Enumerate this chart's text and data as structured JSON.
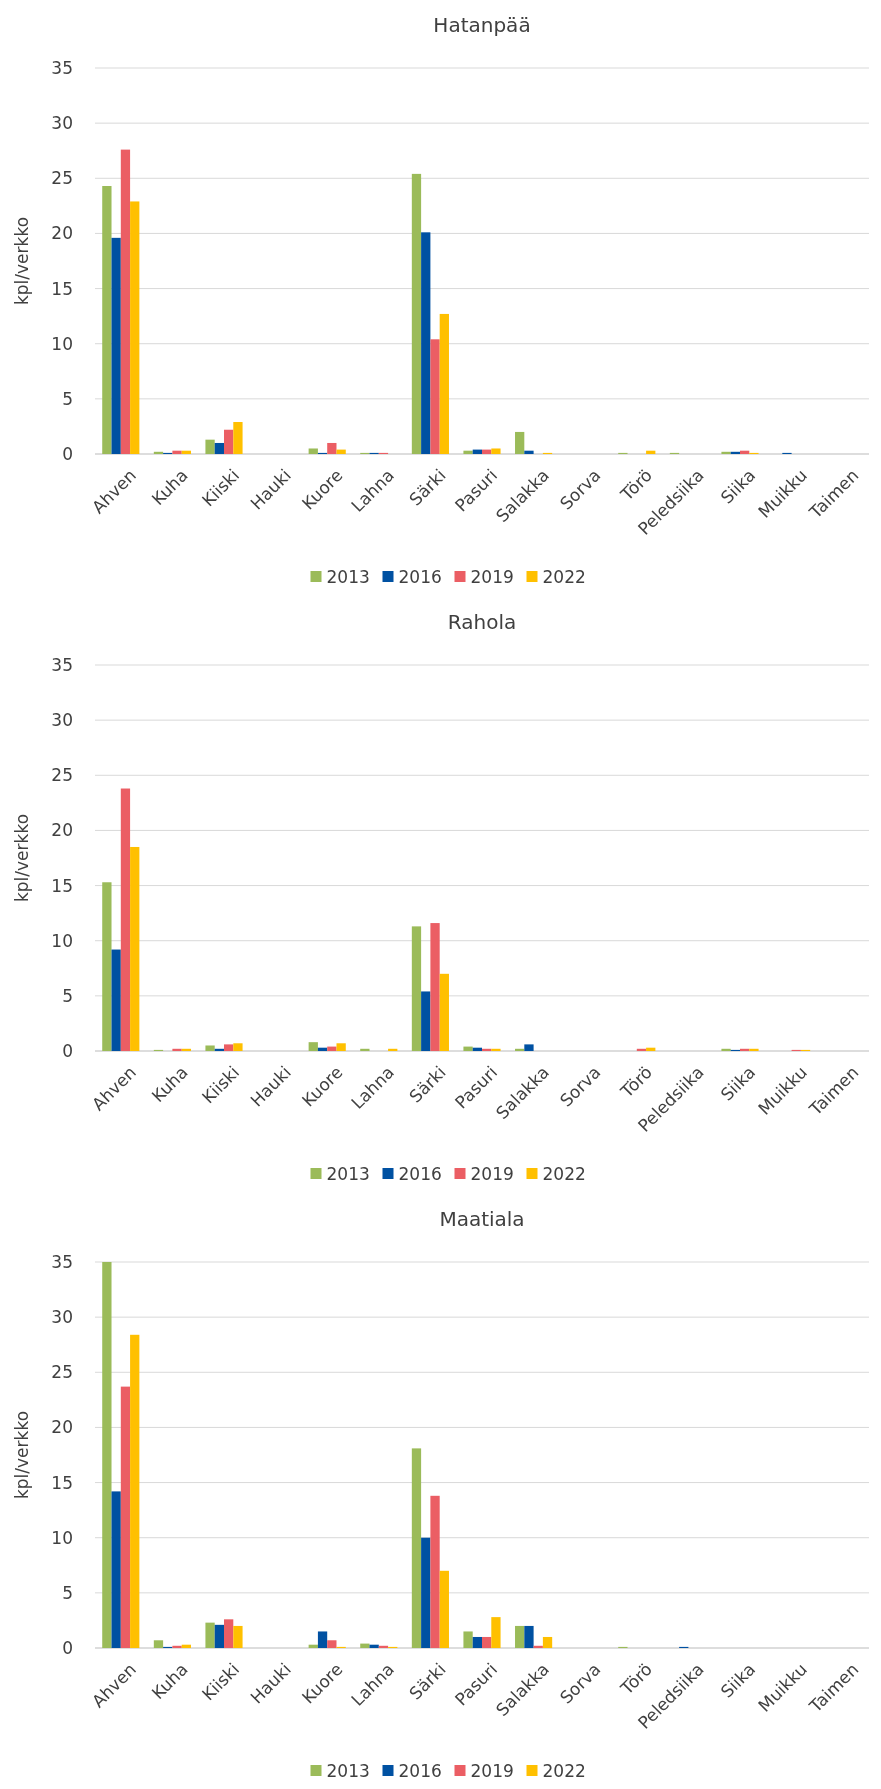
{
  "chart_data": [
    {
      "type": "bar",
      "title": "Hatanpää",
      "ylabel": "kpl/verkko",
      "categories": [
        "Ahven",
        "Kuha",
        "Kiiski",
        "Hauki",
        "Kuore",
        "Lahna",
        "Särki",
        "Pasuri",
        "Salakka",
        "Sorva",
        "Törö",
        "Peledsiika",
        "Siika",
        "Muikku",
        "Taimen"
      ],
      "ylim": [
        0,
        35
      ],
      "yticks": [
        0,
        5,
        10,
        15,
        20,
        25,
        30,
        35
      ],
      "grid": "y",
      "legend": "bottom",
      "series": [
        {
          "name": "2013",
          "color": "#9bbb59",
          "values": [
            24.3,
            0.2,
            1.3,
            0,
            0.5,
            0.1,
            25.4,
            0.3,
            2.0,
            0,
            0.1,
            0.1,
            0.2,
            0,
            0
          ]
        },
        {
          "name": "2016",
          "color": "#0051a2",
          "values": [
            19.6,
            0.1,
            1.0,
            0,
            0.1,
            0.1,
            20.1,
            0.4,
            0.3,
            0,
            0,
            0,
            0.2,
            0.1,
            0
          ]
        },
        {
          "name": "2019",
          "color": "#eb5e64",
          "values": [
            27.6,
            0.3,
            2.2,
            0,
            1.0,
            0.1,
            10.4,
            0.4,
            0,
            0,
            0,
            0,
            0.3,
            0,
            0
          ]
        },
        {
          "name": "2022",
          "color": "#ffc000",
          "values": [
            22.9,
            0.3,
            2.9,
            0,
            0.4,
            0,
            12.7,
            0.5,
            0.1,
            0,
            0.3,
            0,
            0.1,
            0,
            0
          ]
        }
      ]
    },
    {
      "type": "bar",
      "title": "Rahola",
      "ylabel": "kpl/verkko",
      "categories": [
        "Ahven",
        "Kuha",
        "Kiiski",
        "Hauki",
        "Kuore",
        "Lahna",
        "Särki",
        "Pasuri",
        "Salakka",
        "Sorva",
        "Törö",
        "Peledsiika",
        "Siika",
        "Muikku",
        "Taimen"
      ],
      "ylim": [
        0,
        35
      ],
      "yticks": [
        0,
        5,
        10,
        15,
        20,
        25,
        30,
        35
      ],
      "grid": "y",
      "legend": "bottom",
      "series": [
        {
          "name": "2013",
          "color": "#9bbb59",
          "values": [
            15.3,
            0.1,
            0.5,
            0,
            0.8,
            0.2,
            11.3,
            0.4,
            0.2,
            0,
            0,
            0,
            0.2,
            0,
            0
          ]
        },
        {
          "name": "2016",
          "color": "#0051a2",
          "values": [
            9.2,
            0,
            0.2,
            0,
            0.3,
            0,
            5.4,
            0.3,
            0.6,
            0,
            0,
            0,
            0.1,
            0,
            0
          ]
        },
        {
          "name": "2019",
          "color": "#eb5e64",
          "values": [
            23.8,
            0.2,
            0.6,
            0,
            0.4,
            0,
            11.6,
            0.2,
            0,
            0,
            0.2,
            0,
            0.2,
            0.1,
            0
          ]
        },
        {
          "name": "2022",
          "color": "#ffc000",
          "values": [
            18.5,
            0.2,
            0.7,
            0,
            0.7,
            0.2,
            7.0,
            0.2,
            0,
            0,
            0.3,
            0,
            0.2,
            0.1,
            0
          ]
        }
      ]
    },
    {
      "type": "bar",
      "title": "Maatiala",
      "ylabel": "kpl/verkko",
      "categories": [
        "Ahven",
        "Kuha",
        "Kiiski",
        "Hauki",
        "Kuore",
        "Lahna",
        "Särki",
        "Pasuri",
        "Salakka",
        "Sorva",
        "Törö",
        "Peledsiika",
        "Siika",
        "Muikku",
        "Taimen"
      ],
      "ylim": [
        0,
        35
      ],
      "yticks": [
        0,
        5,
        10,
        15,
        20,
        25,
        30,
        35
      ],
      "grid": "y",
      "legend": "bottom",
      "series": [
        {
          "name": "2013",
          "color": "#9bbb59",
          "values": [
            35,
            0.7,
            2.3,
            0,
            0.3,
            0.4,
            18.1,
            1.5,
            2.0,
            0,
            0.1,
            0,
            0,
            0,
            0
          ]
        },
        {
          "name": "2016",
          "color": "#0051a2",
          "values": [
            14.2,
            0.1,
            2.1,
            0,
            1.5,
            0.3,
            10.0,
            1.0,
            2.0,
            0,
            0,
            0.1,
            0,
            0,
            0
          ]
        },
        {
          "name": "2019",
          "color": "#eb5e64",
          "values": [
            23.7,
            0.2,
            2.6,
            0,
            0.7,
            0.2,
            13.8,
            1.0,
            0.2,
            0,
            0,
            0,
            0,
            0,
            0
          ]
        },
        {
          "name": "2022",
          "color": "#ffc000",
          "values": [
            28.4,
            0.3,
            2.0,
            0,
            0.1,
            0.1,
            7.0,
            2.8,
            1.0,
            0,
            0,
            0,
            0,
            0,
            0
          ]
        }
      ]
    }
  ]
}
